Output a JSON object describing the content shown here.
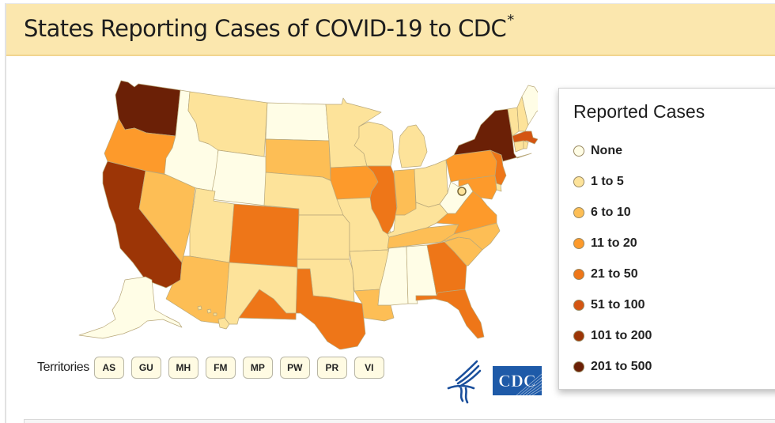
{
  "header": {
    "title": "States Reporting Cases of COVID-19 to CDC",
    "title_mark": "*"
  },
  "legend": {
    "title": "Reported Cases",
    "items": [
      {
        "label": "None",
        "color": "#fffde6"
      },
      {
        "label": "1 to 5",
        "color": "#fde39a"
      },
      {
        "label": "6 to 10",
        "color": "#fdbe55"
      },
      {
        "label": "11 to 20",
        "color": "#fd9a2b"
      },
      {
        "label": "21 to 50",
        "color": "#ee7618"
      },
      {
        "label": "51 to 100",
        "color": "#d45512"
      },
      {
        "label": "101 to 200",
        "color": "#9c3506"
      },
      {
        "label": "201 to 500",
        "color": "#6b2006"
      }
    ]
  },
  "map": {
    "state_categories": {
      "WA": "201 to 500",
      "OR": "11 to 20",
      "CA": "101 to 200",
      "NV": "6 to 10",
      "ID": "None",
      "MT": "1 to 5",
      "WY": "None",
      "UT": "1 to 5",
      "AZ": "6 to 10",
      "CO": "21 to 50",
      "NM": "1 to 5",
      "ND": "None",
      "SD": "6 to 10",
      "NE": "1 to 5",
      "KS": "1 to 5",
      "OK": "1 to 5",
      "TX": "21 to 50",
      "MN": "1 to 5",
      "IA": "11 to 20",
      "MO": "1 to 5",
      "AR": "1 to 5",
      "LA": "6 to 10",
      "WI": "1 to 5",
      "IL": "21 to 50",
      "MI": "1 to 5",
      "IN": "6 to 10",
      "OH": "1 to 5",
      "KY": "1 to 5",
      "TN": "6 to 10",
      "MS": "None",
      "AL": "None",
      "GA": "21 to 50",
      "FL": "21 to 50",
      "SC": "6 to 10",
      "NC": "6 to 10",
      "VA": "11 to 20",
      "WV": "None",
      "PA": "11 to 20",
      "NY": "201 to 500",
      "NJ": "21 to 50",
      "MD": "11 to 20",
      "DE": "1 to 5",
      "DC": "1 to 5",
      "VT": "1 to 5",
      "NH": "1 to 5",
      "ME": "None",
      "MA": "51 to 100",
      "CT": "1 to 5",
      "RI": "1 to 5",
      "AK": "None",
      "HI": "1 to 5"
    }
  },
  "territories": {
    "label": "Territories",
    "buttons": [
      "AS",
      "GU",
      "MH",
      "FM",
      "MP",
      "PW",
      "PR",
      "VI"
    ]
  },
  "logos": {
    "cdc": "CDC"
  }
}
